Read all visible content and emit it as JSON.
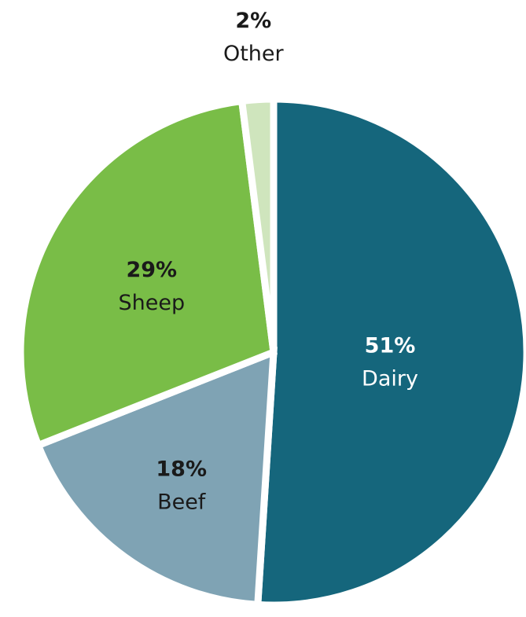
{
  "chart_data": {
    "type": "pie",
    "start_angle_deg": 0,
    "direction": "clockwise",
    "slices": [
      {
        "name": "Dairy",
        "value": 51,
        "label": "51%",
        "color": "#15667c",
        "text_color": "#ffffff",
        "label_side": "inside"
      },
      {
        "name": "Beef",
        "value": 18,
        "label": "18%",
        "color": "#7fa3b4",
        "text_color": "#1a1a1a",
        "label_side": "inside"
      },
      {
        "name": "Sheep",
        "value": 29,
        "label": "29%",
        "color": "#79bd47",
        "text_color": "#1a1a1a",
        "label_side": "inside"
      },
      {
        "name": "Other",
        "value": 2,
        "label": "2%",
        "color": "#cfe5bd",
        "text_color": "#1a1a1a",
        "label_side": "outside"
      }
    ]
  }
}
